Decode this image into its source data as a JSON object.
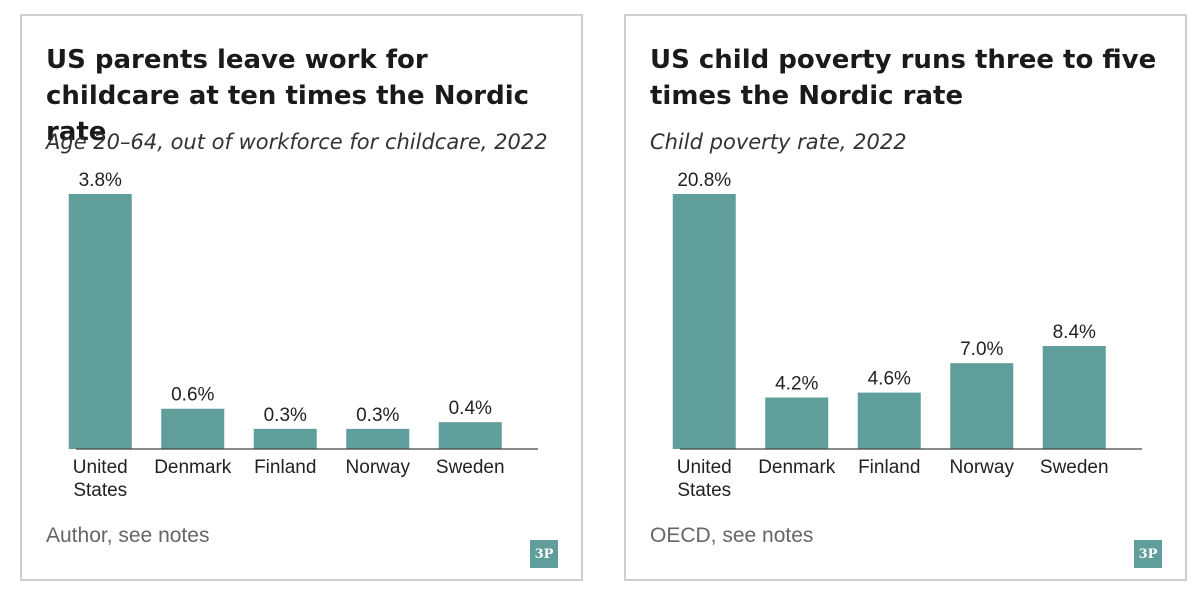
{
  "colors": {
    "bar": "#5f9e9b",
    "border": "#cfcfcf",
    "logo_bg": "#5f9e9b"
  },
  "logo_text": "3P",
  "chart_data": [
    {
      "type": "bar",
      "title": "US parents leave work for childcare at ten times the Nordic rate",
      "subtitle": "Age 20–64, out of workforce for childcare, 2022",
      "source": "Author, see notes",
      "categories": [
        "United States",
        "Denmark",
        "Finland",
        "Norway",
        "Sweden"
      ],
      "values": [
        3.8,
        0.6,
        0.3,
        0.3,
        0.4
      ],
      "value_labels": [
        "3.8%",
        "0.6%",
        "0.3%",
        "0.3%",
        "0.4%"
      ],
      "ylim": [
        0,
        3.8
      ],
      "grid": false,
      "xlabel": "",
      "ylabel": ""
    },
    {
      "type": "bar",
      "title": "US child poverty runs three to five times the Nordic rate",
      "subtitle": "Child poverty rate, 2022",
      "source": "OECD, see notes",
      "categories": [
        "United States",
        "Denmark",
        "Finland",
        "Norway",
        "Sweden"
      ],
      "values": [
        20.8,
        4.2,
        4.6,
        7.0,
        8.4
      ],
      "value_labels": [
        "20.8%",
        "4.2%",
        "4.6%",
        "7.0%",
        "8.4%"
      ],
      "ylim": [
        0,
        20.8
      ],
      "grid": false,
      "xlabel": "",
      "ylabel": ""
    }
  ]
}
